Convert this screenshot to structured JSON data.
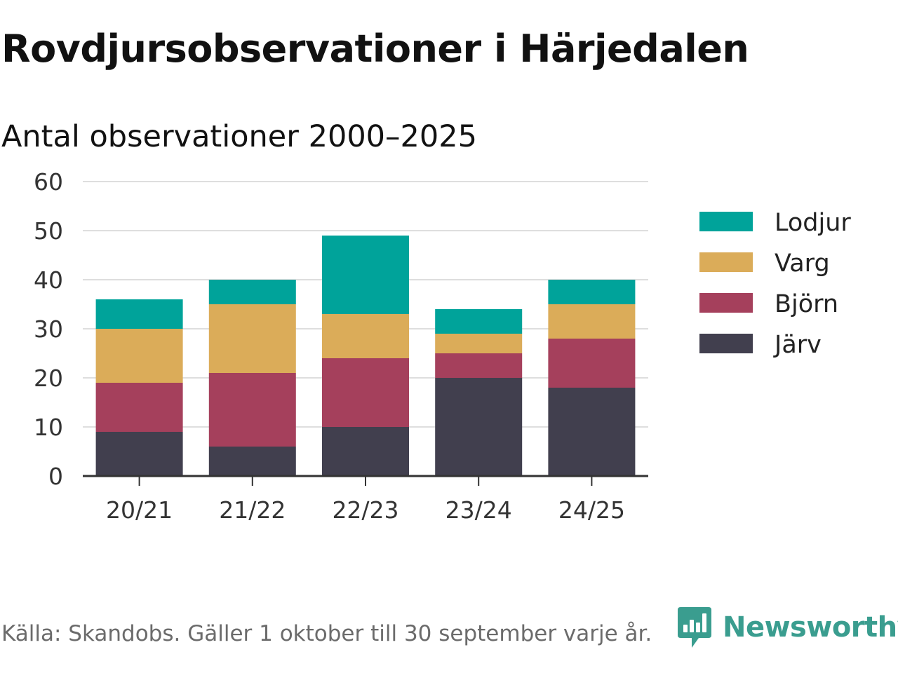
{
  "title": "Rovdjursobservationer i Härjedalen",
  "subtitle": "Antal observationer 2000–2025",
  "source": "Källa: Skandobs. Gäller 1 oktober till 30 september varje år.",
  "brand": {
    "name": "Newsworthy",
    "icon": "bar-chart-speech-bubble-icon",
    "color": "#3a9d8f"
  },
  "chart_data": {
    "type": "bar",
    "stacked": true,
    "title": "Rovdjursobservationer i Härjedalen",
    "subtitle": "Antal observationer 2000–2025",
    "xlabel": "",
    "ylabel": "",
    "categories": [
      "20/21",
      "21/22",
      "22/23",
      "23/24",
      "24/25"
    ],
    "ylim": [
      0,
      60
    ],
    "yticks": [
      0,
      10,
      20,
      30,
      40,
      50,
      60
    ],
    "grid": true,
    "legend_position": "right",
    "series": [
      {
        "name": "Järv",
        "color": "#413f4e",
        "values": [
          9,
          6,
          10,
          20,
          18
        ]
      },
      {
        "name": "Björn",
        "color": "#a5405c",
        "values": [
          10,
          15,
          14,
          5,
          10
        ]
      },
      {
        "name": "Varg",
        "color": "#dbac59",
        "values": [
          11,
          14,
          9,
          4,
          7
        ]
      },
      {
        "name": "Lodjur",
        "color": "#00a39a",
        "values": [
          6,
          5,
          16,
          5,
          5
        ]
      }
    ],
    "legend_order": [
      "Lodjur",
      "Varg",
      "Björn",
      "Järv"
    ]
  }
}
